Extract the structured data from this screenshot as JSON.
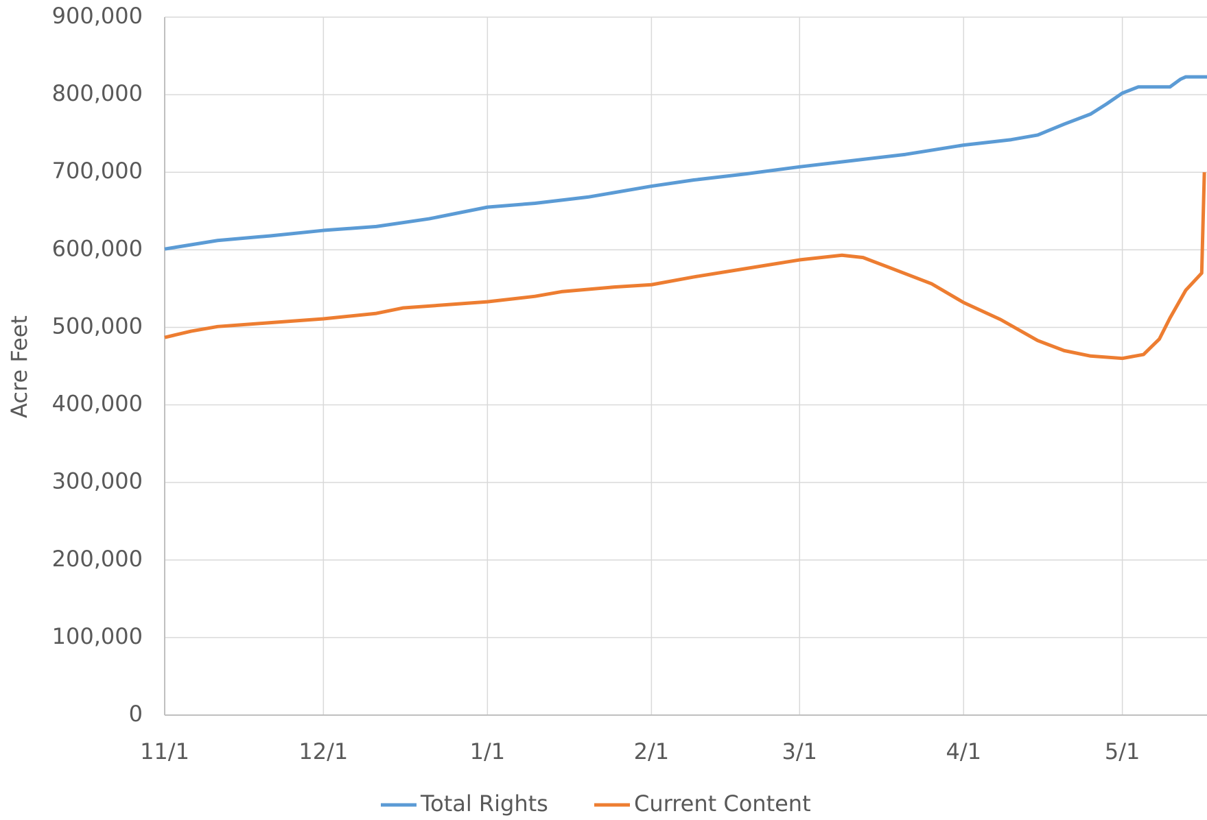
{
  "chart_data": {
    "type": "line",
    "y_label": "Acre Feet",
    "xlim": [
      0,
      197
    ],
    "xticks": [
      {
        "value": 0,
        "label": "11/1"
      },
      {
        "value": 30,
        "label": "12/1"
      },
      {
        "value": 61,
        "label": "1/1"
      },
      {
        "value": 92,
        "label": "2/1"
      },
      {
        "value": 120,
        "label": "3/1"
      },
      {
        "value": 151,
        "label": "4/1"
      },
      {
        "value": 181,
        "label": "5/1"
      }
    ],
    "ylim": [
      0,
      900000
    ],
    "yticks": [
      0,
      {
        "value": 100000,
        "label": "100,000"
      },
      {
        "value": 200000,
        "label": "200,000"
      },
      {
        "value": 300000,
        "label": "300,000"
      },
      {
        "value": 400000,
        "label": "400,000"
      },
      {
        "value": 500000,
        "label": "500,000"
      },
      {
        "value": 600000,
        "label": "600,000"
      },
      {
        "value": 700000,
        "label": "700,000"
      },
      {
        "value": 800000,
        "label": "800,000"
      },
      {
        "value": 900000,
        "label": "900,000"
      }
    ],
    "grid": true,
    "legend": "bottom",
    "series": [
      {
        "name": "Total Rights",
        "color": "#5b9bd5",
        "x": [
          0,
          10,
          20,
          30,
          40,
          50,
          61,
          70,
          80,
          92,
          100,
          110,
          120,
          130,
          140,
          151,
          160,
          165,
          170,
          175,
          178,
          181,
          184,
          190,
          192,
          193,
          197
        ],
        "values": [
          601000,
          612000,
          618000,
          625000,
          630000,
          640000,
          655000,
          660000,
          668000,
          682000,
          690000,
          698000,
          707000,
          715000,
          723000,
          735000,
          742000,
          748000,
          762000,
          775000,
          788000,
          802000,
          810000,
          810000,
          820000,
          823000,
          823000
        ]
      },
      {
        "name": "Current Content",
        "color": "#ed7d31",
        "x": [
          0,
          5,
          10,
          20,
          30,
          40,
          45,
          55,
          61,
          70,
          75,
          85,
          92,
          100,
          110,
          120,
          128,
          132,
          137,
          145,
          151,
          158,
          165,
          170,
          175,
          181,
          185,
          188,
          190,
          193,
          196,
          196.5
        ],
        "values": [
          487000,
          495000,
          501000,
          506000,
          511000,
          518000,
          525000,
          530000,
          533000,
          540000,
          546000,
          552000,
          555000,
          565000,
          576000,
          587000,
          593000,
          590000,
          577000,
          556000,
          532000,
          510000,
          483000,
          470000,
          463000,
          460000,
          465000,
          485000,
          512000,
          548000,
          570000,
          700000
        ]
      }
    ]
  }
}
